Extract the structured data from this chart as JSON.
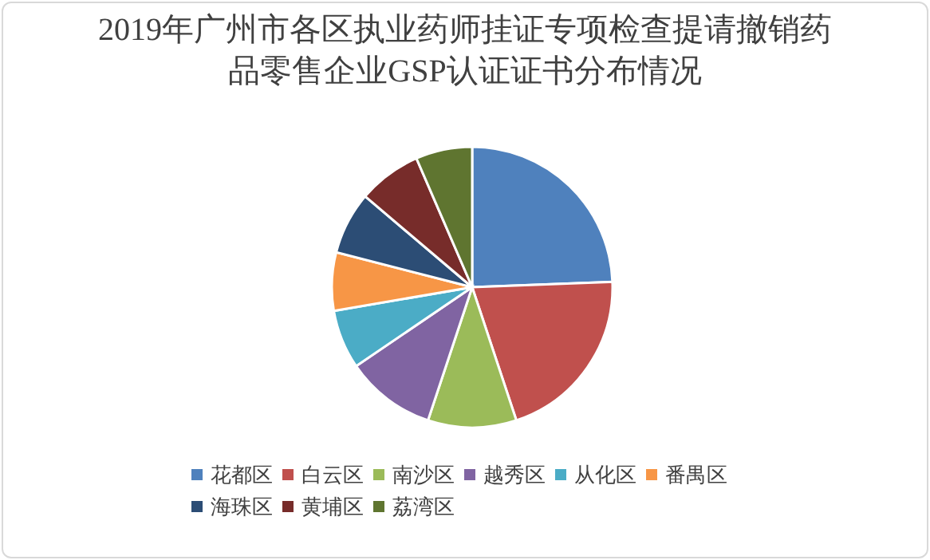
{
  "chart_data": {
    "type": "pie",
    "title": "2019年广州市各区执业药师挂证专项检查提请撤销药品零售企业GSP认证证书分布情况",
    "categories": [
      "花都区",
      "白云区",
      "南沙区",
      "越秀区",
      "从化区",
      "番禺区",
      "海珠区",
      "黄埔区",
      "荔湾区"
    ],
    "values": [
      24.4,
      20.5,
      10.2,
      10.4,
      6.8,
      6.7,
      7.2,
      7.3,
      6.5
    ],
    "colors": [
      "#4f81bd",
      "#c0504d",
      "#9bbb59",
      "#8064a2",
      "#4bacc6",
      "#f79646",
      "#2c4d75",
      "#772c2a",
      "#5f7530"
    ],
    "legend": "bottom"
  }
}
